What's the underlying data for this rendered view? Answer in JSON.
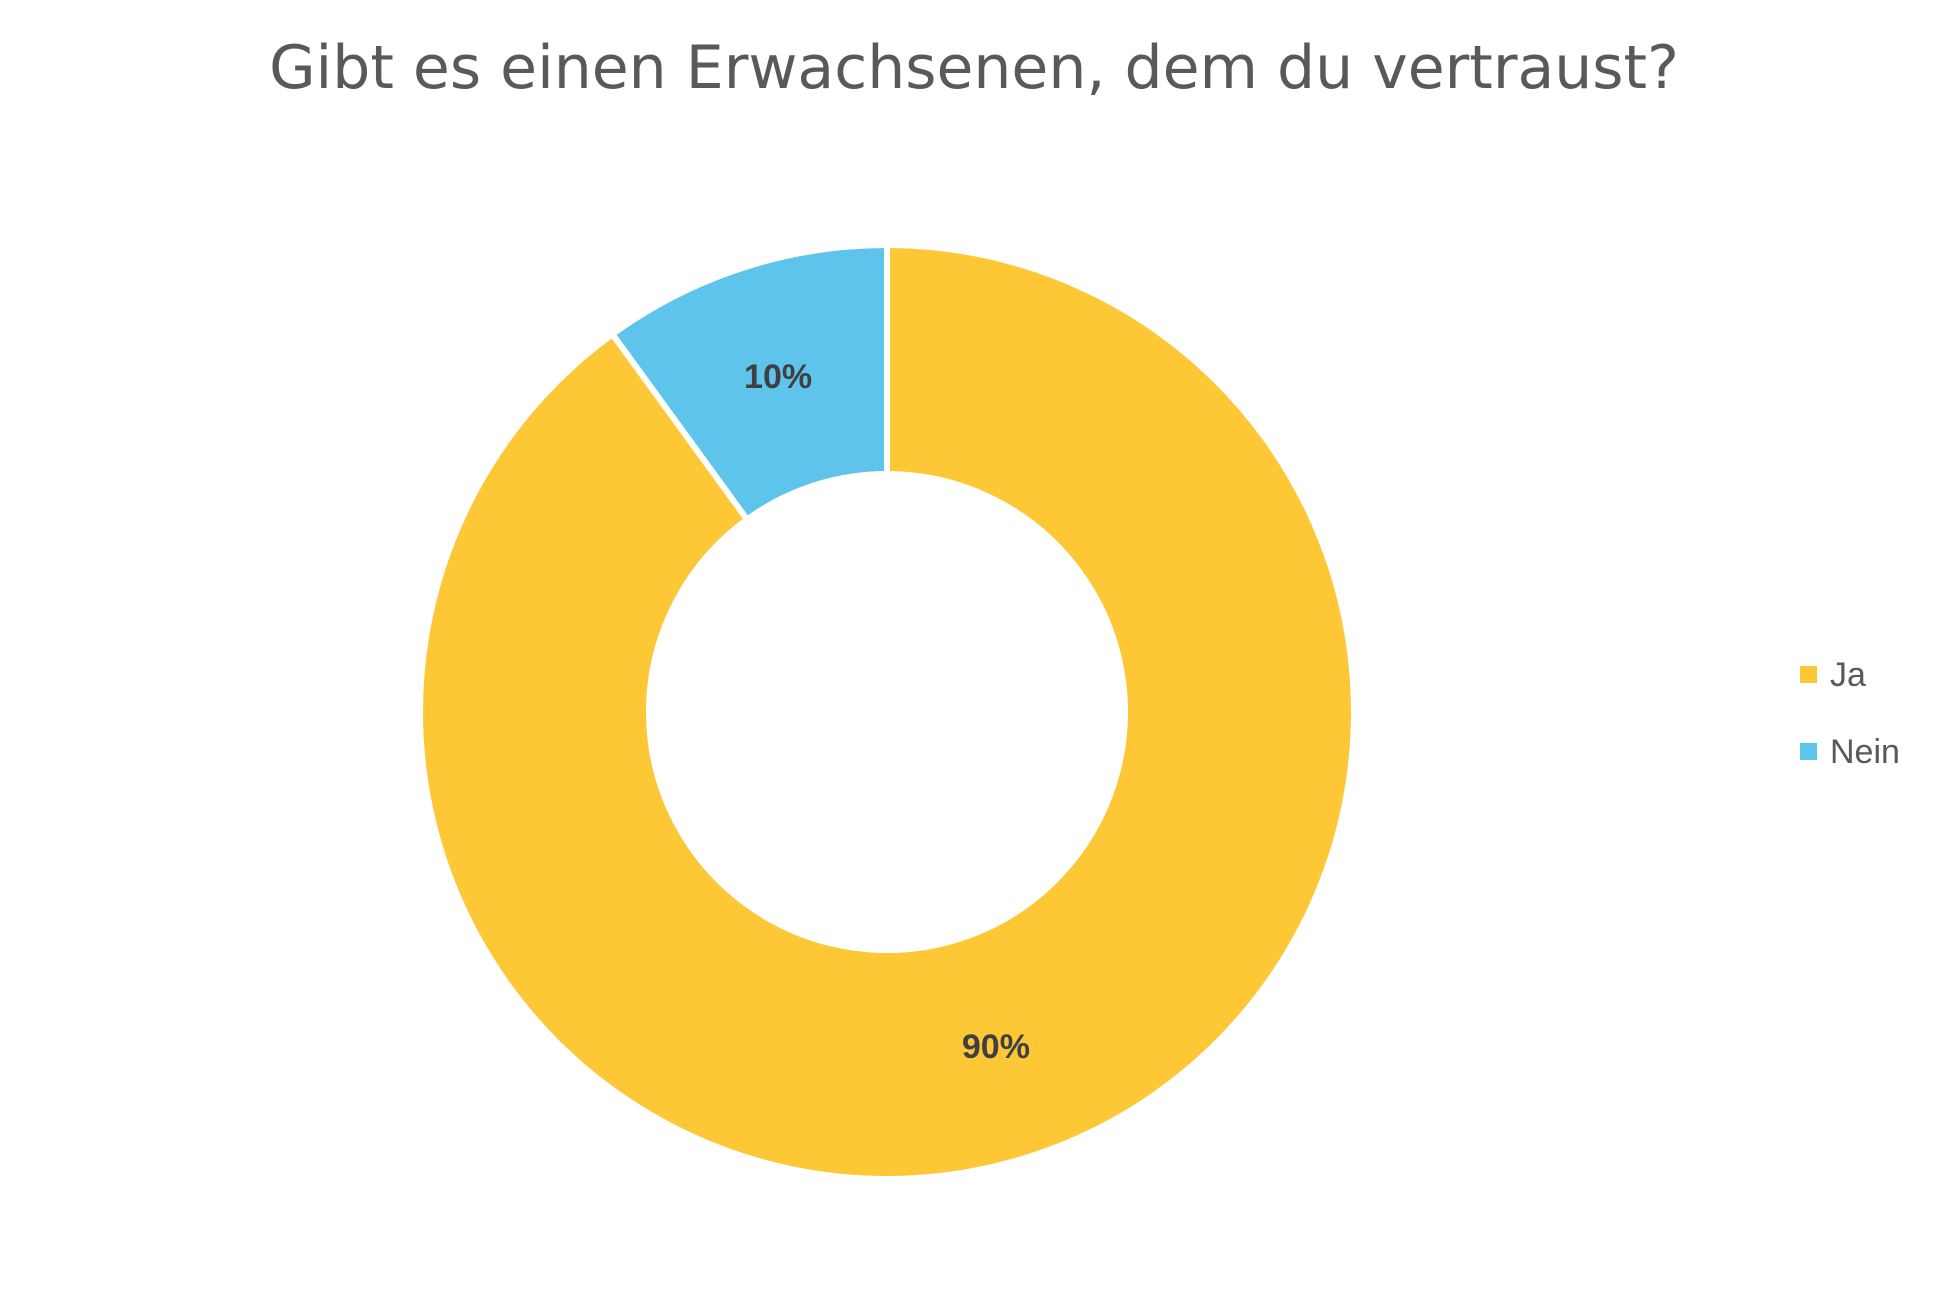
{
  "chart_data": {
    "type": "pie",
    "variant": "donut",
    "title": "Gibt es einen Erwachsenen, dem du vertraust?",
    "categories": [
      "Ja",
      "Nein"
    ],
    "values": [
      90,
      10
    ],
    "data_labels": [
      "90%",
      "10%"
    ],
    "colors": [
      "#FDC735",
      "#5EC4EC"
    ],
    "start_angle_deg": 0,
    "direction": "clockwise",
    "legend_position": "right",
    "legend": [
      {
        "label": "Ja",
        "color": "#FDC735"
      },
      {
        "label": "Nein",
        "color": "#5EC4EC"
      }
    ]
  }
}
